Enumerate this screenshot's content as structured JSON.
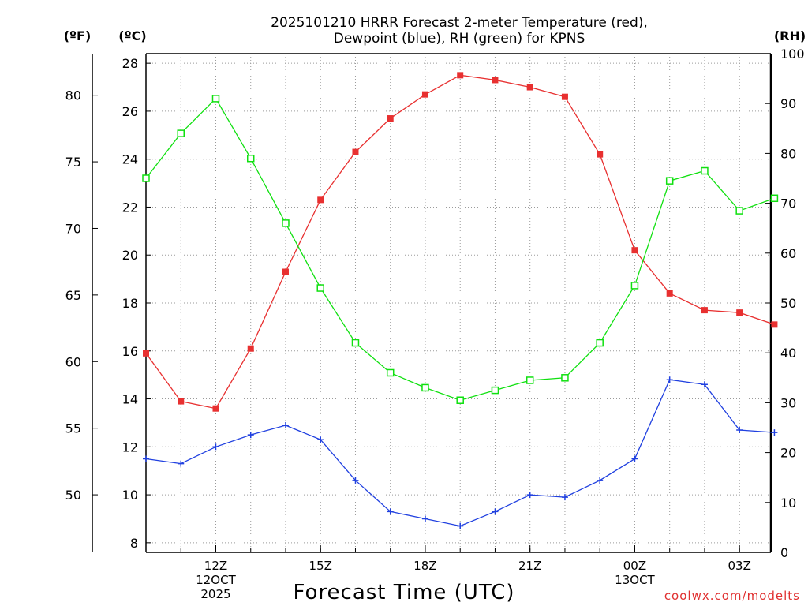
{
  "chart_data": {
    "type": "line",
    "title": [
      "2025101210 HRRR Forecast 2-meter Temperature (red),",
      "Dewpoint (blue), RH (green) for KPNS"
    ],
    "xlabel": "Forecast Time (UTC)",
    "credit": "coolwx.com/modelts",
    "unit_labels": {
      "fahrenheit": "(ºF)",
      "celsius": "(ºC)",
      "rh": "(RH)"
    },
    "x_hours": [
      10,
      11,
      12,
      13,
      14,
      15,
      16,
      17,
      18,
      19,
      20,
      21,
      22,
      23,
      24,
      25,
      26,
      27,
      28
    ],
    "xlim": [
      10,
      27.9
    ],
    "x_ticks": [
      {
        "hour": 12,
        "lines": [
          "12Z",
          "12OCT",
          "2025"
        ]
      },
      {
        "hour": 15,
        "lines": [
          "15Z"
        ]
      },
      {
        "hour": 18,
        "lines": [
          "18Z"
        ]
      },
      {
        "hour": 21,
        "lines": [
          "21Z"
        ]
      },
      {
        "hour": 24,
        "lines": [
          "00Z",
          "13OCT"
        ]
      },
      {
        "hour": 27,
        "lines": [
          "03Z"
        ]
      }
    ],
    "y_left_celsius": {
      "lim": [
        7.6,
        28.4
      ],
      "ticks": [
        8,
        10,
        12,
        14,
        16,
        18,
        20,
        22,
        24,
        26,
        28
      ]
    },
    "y_left_fahrenheit": {
      "ticks": [
        50,
        55,
        60,
        65,
        70,
        75,
        80
      ]
    },
    "y_right_rh": {
      "lim": [
        0,
        100
      ],
      "ticks": [
        0,
        10,
        20,
        30,
        40,
        50,
        60,
        70,
        80,
        90,
        100
      ]
    },
    "series": [
      {
        "name": "2-meter Temperature",
        "unit": "C",
        "axis": "celsius",
        "color": "#e83030",
        "marker": "filled-square",
        "values": [
          15.9,
          13.9,
          13.6,
          16.1,
          19.3,
          22.3,
          24.3,
          25.7,
          26.7,
          27.5,
          27.3,
          27.0,
          26.6,
          24.2,
          20.2,
          18.4,
          17.7,
          17.6,
          17.1
        ]
      },
      {
        "name": "Dewpoint",
        "unit": "C",
        "axis": "celsius",
        "color": "#2040e0",
        "marker": "plus",
        "values": [
          11.5,
          11.3,
          12.0,
          12.5,
          12.9,
          12.3,
          10.6,
          9.3,
          9.0,
          8.7,
          9.3,
          10.0,
          9.9,
          10.6,
          11.5,
          14.8,
          14.6,
          12.7,
          12.6
        ]
      },
      {
        "name": "RH",
        "unit": "%",
        "axis": "rh",
        "color": "#10e010",
        "marker": "open-square",
        "values": [
          75,
          84,
          91,
          79,
          66,
          53,
          42,
          36,
          33,
          30.5,
          32.5,
          34.5,
          35,
          42,
          53.5,
          74.5,
          76.5,
          68.5,
          71
        ]
      }
    ]
  }
}
